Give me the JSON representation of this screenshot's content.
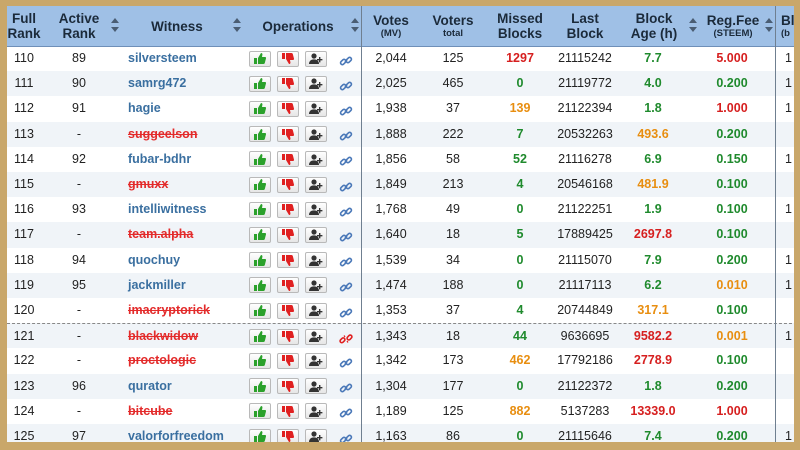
{
  "colors": {
    "header_bg": "#9fc0e6",
    "frame": "#c9a76a",
    "green": "#1f8a2d",
    "red": "#d61f1f",
    "orange": "#e88e10",
    "witness_link": "#3a6fa0"
  },
  "header": {
    "full_rank": [
      "Full",
      "Rank"
    ],
    "active_rank": [
      "Active",
      "Rank"
    ],
    "witness": "Witness",
    "operations": "Operations",
    "votes": "Votes",
    "votes_sub": "(MV)",
    "voters": "Voters",
    "voters_sub": "total",
    "missed": [
      "Missed",
      "Blocks"
    ],
    "last_block": [
      "Last",
      "Block"
    ],
    "block_age": [
      "Block",
      "Age (h)"
    ],
    "reg_fee": "Reg.Fee",
    "reg_fee_sub": "(STEEM)",
    "cut_col": "Bl",
    "cut_col_sub": "(b"
  },
  "icons": {
    "vote_up": "thumbs-up-icon",
    "vote_down": "thumbs-down-icon",
    "add_proxy": "add-user-icon",
    "link": "chain-link-icon",
    "broken_link": "broken-link-icon"
  },
  "rows": [
    {
      "full_rank": "110",
      "active_rank": "89",
      "witness": "silversteem",
      "disabled": false,
      "votes": "2,044",
      "voters": "125",
      "missed": "1297",
      "missed_color": "red",
      "last_block": "21115242",
      "age": "7.7",
      "age_color": "green",
      "fee": "5.000",
      "fee_color": "red",
      "cut": "1",
      "link": "link"
    },
    {
      "full_rank": "111",
      "active_rank": "90",
      "witness": "samrg472",
      "disabled": false,
      "votes": "2,025",
      "voters": "465",
      "missed": "0",
      "missed_color": "green",
      "last_block": "21119772",
      "age": "4.0",
      "age_color": "green",
      "fee": "0.200",
      "fee_color": "green",
      "cut": "1",
      "link": "link"
    },
    {
      "full_rank": "112",
      "active_rank": "91",
      "witness": "hagie",
      "disabled": false,
      "votes": "1,938",
      "voters": "37",
      "missed": "139",
      "missed_color": "orange",
      "last_block": "21122394",
      "age": "1.8",
      "age_color": "green",
      "fee": "1.000",
      "fee_color": "red",
      "cut": "1",
      "link": "link"
    },
    {
      "full_rank": "113",
      "active_rank": "-",
      "witness": "suggeelson",
      "disabled": true,
      "votes": "1,888",
      "voters": "222",
      "missed": "7",
      "missed_color": "green",
      "last_block": "20532263",
      "age": "493.6",
      "age_color": "orange",
      "fee": "0.200",
      "fee_color": "green",
      "cut": "",
      "link": "link"
    },
    {
      "full_rank": "114",
      "active_rank": "92",
      "witness": "fubar-bdhr",
      "disabled": false,
      "votes": "1,856",
      "voters": "58",
      "missed": "52",
      "missed_color": "green",
      "last_block": "21116278",
      "age": "6.9",
      "age_color": "green",
      "fee": "0.150",
      "fee_color": "green",
      "cut": "1",
      "link": "link"
    },
    {
      "full_rank": "115",
      "active_rank": "-",
      "witness": "gmuxx",
      "disabled": true,
      "votes": "1,849",
      "voters": "213",
      "missed": "4",
      "missed_color": "green",
      "last_block": "20546168",
      "age": "481.9",
      "age_color": "orange",
      "fee": "0.100",
      "fee_color": "green",
      "cut": "",
      "link": "link"
    },
    {
      "full_rank": "116",
      "active_rank": "93",
      "witness": "intelliwitness",
      "disabled": false,
      "votes": "1,768",
      "voters": "49",
      "missed": "0",
      "missed_color": "green",
      "last_block": "21122251",
      "age": "1.9",
      "age_color": "green",
      "fee": "0.100",
      "fee_color": "green",
      "cut": "1",
      "link": "link"
    },
    {
      "full_rank": "117",
      "active_rank": "-",
      "witness": "team.alpha",
      "disabled": true,
      "votes": "1,640",
      "voters": "18",
      "missed": "5",
      "missed_color": "green",
      "last_block": "17889425",
      "age": "2697.8",
      "age_color": "red",
      "fee": "0.100",
      "fee_color": "green",
      "cut": "",
      "link": "link"
    },
    {
      "full_rank": "118",
      "active_rank": "94",
      "witness": "quochuy",
      "disabled": false,
      "votes": "1,539",
      "voters": "34",
      "missed": "0",
      "missed_color": "green",
      "last_block": "21115070",
      "age": "7.9",
      "age_color": "green",
      "fee": "0.200",
      "fee_color": "green",
      "cut": "1",
      "link": "link"
    },
    {
      "full_rank": "119",
      "active_rank": "95",
      "witness": "jackmiller",
      "disabled": false,
      "votes": "1,474",
      "voters": "188",
      "missed": "0",
      "missed_color": "green",
      "last_block": "21117113",
      "age": "6.2",
      "age_color": "green",
      "fee": "0.010",
      "fee_color": "orange",
      "cut": "1",
      "link": "link"
    },
    {
      "full_rank": "120",
      "active_rank": "-",
      "witness": "imacryptorick",
      "disabled": true,
      "votes": "1,353",
      "voters": "37",
      "missed": "4",
      "missed_color": "green",
      "last_block": "20744849",
      "age": "317.1",
      "age_color": "orange",
      "fee": "0.100",
      "fee_color": "green",
      "cut": "",
      "link": "link"
    },
    {
      "full_rank": "121",
      "active_rank": "-",
      "witness": "blackwidow",
      "disabled": true,
      "votes": "1,343",
      "voters": "18",
      "missed": "44",
      "missed_color": "green",
      "last_block": "9636695",
      "age": "9582.2",
      "age_color": "red",
      "fee": "0.001",
      "fee_color": "orange",
      "cut": "1",
      "link": "broken"
    },
    {
      "full_rank": "122",
      "active_rank": "-",
      "witness": "proctologic",
      "disabled": true,
      "votes": "1,342",
      "voters": "173",
      "missed": "462",
      "missed_color": "orange",
      "last_block": "17792186",
      "age": "2778.9",
      "age_color": "red",
      "fee": "0.100",
      "fee_color": "green",
      "cut": "",
      "link": "link"
    },
    {
      "full_rank": "123",
      "active_rank": "96",
      "witness": "qurator",
      "disabled": false,
      "votes": "1,304",
      "voters": "177",
      "missed": "0",
      "missed_color": "green",
      "last_block": "21122372",
      "age": "1.8",
      "age_color": "green",
      "fee": "0.200",
      "fee_color": "green",
      "cut": "",
      "link": "link"
    },
    {
      "full_rank": "124",
      "active_rank": "-",
      "witness": "bitcube",
      "disabled": true,
      "votes": "1,189",
      "voters": "125",
      "missed": "882",
      "missed_color": "orange",
      "last_block": "5137283",
      "age": "13339.0",
      "age_color": "red",
      "fee": "1.000",
      "fee_color": "red",
      "cut": "",
      "link": "link"
    },
    {
      "full_rank": "125",
      "active_rank": "97",
      "witness": "valorforfreedom",
      "disabled": false,
      "votes": "1,163",
      "voters": "86",
      "missed": "0",
      "missed_color": "green",
      "last_block": "21115646",
      "age": "7.4",
      "age_color": "green",
      "fee": "0.200",
      "fee_color": "green",
      "cut": "1",
      "link": "link"
    }
  ]
}
